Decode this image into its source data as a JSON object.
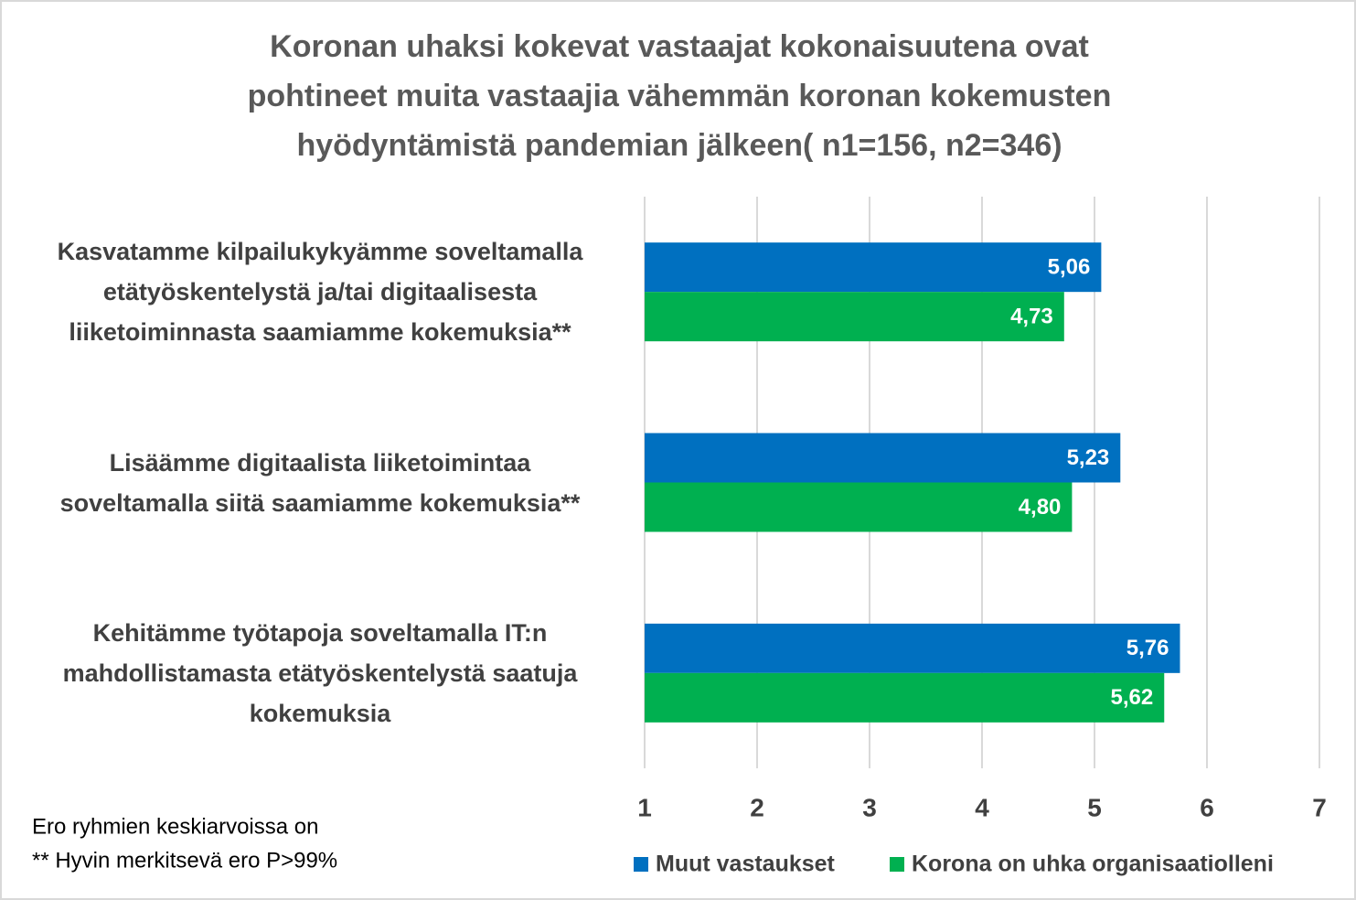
{
  "chart_data": {
    "type": "bar",
    "orientation": "horizontal",
    "title": "Koronan uhaksi kokevat vastaajat kokonaisuutena ovat\npohtineet muita vastaajia vähemmän koronan kokemusten\nhyödyntämistä pandemian jälkeen( n1=156, n2=346)",
    "categories": [
      "Kasvatamme kilpailukykyämme soveltamalla\netätyöskentelystä ja/tai digitaalisesta\nliiketoiminnasta saamiamme kokemuksia**",
      "Lisäämme digitaalista liiketoimintaa\nsoveltamalla siitä saamiamme kokemuksia**",
      "Kehitämme työtapoja soveltamalla IT:n\nmahdollistamasta etätyöskentelystä saatuja\nkokemuksia"
    ],
    "series": [
      {
        "name": "Muut vastaukset",
        "color": "#0070c0",
        "values": [
          5.06,
          5.23,
          5.76
        ],
        "value_labels": [
          "5,06",
          "5,23",
          "5,76"
        ]
      },
      {
        "name": "Korona on uhka organisaatiolleni",
        "color": "#00b050",
        "values": [
          4.73,
          4.8,
          5.62
        ],
        "value_labels": [
          "4,73",
          "4,80",
          "5,62"
        ]
      }
    ],
    "xlim": [
      1,
      7
    ],
    "xticks": [
      1,
      2,
      3,
      4,
      5,
      6,
      7
    ],
    "grid": true,
    "notes": [
      "Ero ryhmien keskiarvoissa on",
      "**  Hyvin merkitsevä ero P>99%"
    ]
  }
}
